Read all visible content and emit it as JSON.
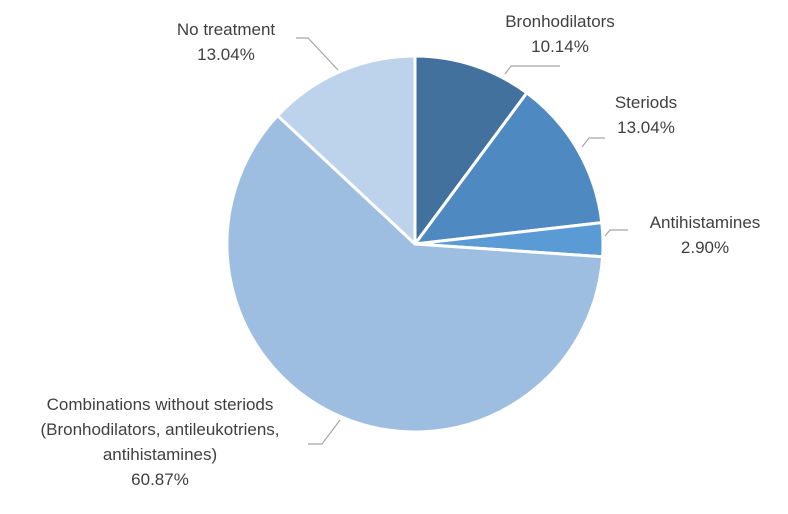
{
  "chart_data": {
    "type": "pie",
    "title": "",
    "slices": [
      {
        "label": [
          "Bronhodilators"
        ],
        "value": 10.14,
        "value_label": "10.14%",
        "color": "#41719c"
      },
      {
        "label": [
          "Steriods"
        ],
        "value": 13.04,
        "value_label": "13.04%",
        "color": "#4f89c1"
      },
      {
        "label": [
          "Antihistamines"
        ],
        "value": 2.9,
        "value_label": "2.90%",
        "color": "#5b9bd5"
      },
      {
        "label": [
          "Combinations without steriods",
          "(Bronhodilators, antileukotriens,",
          "antihistamines)"
        ],
        "value": 60.87,
        "value_label": "60.87%",
        "color": "#9dbde1"
      },
      {
        "label": [
          "No treatment"
        ],
        "value": 13.04,
        "value_label": "13.04%",
        "color": "#bdd2eb"
      }
    ],
    "start_angle": "12 o'clock",
    "direction": "clockwise",
    "legend": "none"
  }
}
